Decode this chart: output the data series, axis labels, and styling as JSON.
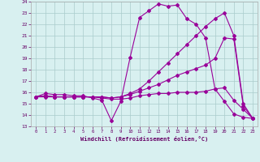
{
  "xlabel": "Windchill (Refroidissement éolien,°C)",
  "x_hours": [
    0,
    1,
    2,
    3,
    4,
    5,
    6,
    7,
    8,
    9,
    10,
    11,
    12,
    13,
    14,
    15,
    16,
    17,
    18,
    19,
    20,
    21,
    22,
    23
  ],
  "line1": [
    15.6,
    15.9,
    15.8,
    15.8,
    15.7,
    15.7,
    15.5,
    15.3,
    13.5,
    15.2,
    19.1,
    22.6,
    23.2,
    23.8,
    23.6,
    23.7,
    22.5,
    22.0,
    20.8,
    16.3,
    15.2,
    14.1,
    13.8,
    13.7
  ],
  "line2": [
    15.6,
    15.6,
    15.6,
    15.6,
    15.6,
    15.6,
    15.6,
    15.5,
    15.4,
    15.4,
    15.5,
    15.7,
    15.8,
    15.9,
    15.9,
    16.0,
    16.0,
    16.0,
    16.1,
    16.3,
    16.4,
    15.3,
    14.5,
    13.7
  ],
  "line3": [
    15.6,
    15.7,
    15.6,
    15.6,
    15.6,
    15.6,
    15.6,
    15.6,
    15.5,
    15.6,
    15.8,
    16.1,
    16.4,
    16.7,
    17.1,
    17.5,
    17.8,
    18.1,
    18.4,
    19.0,
    20.8,
    20.7,
    14.8,
    13.7
  ],
  "line4": [
    15.6,
    15.7,
    15.6,
    15.6,
    15.6,
    15.6,
    15.6,
    15.6,
    15.5,
    15.6,
    15.9,
    16.3,
    17.0,
    17.8,
    18.6,
    19.4,
    20.2,
    21.0,
    21.8,
    22.5,
    23.0,
    21.0,
    15.0,
    13.7
  ],
  "line_color": "#990099",
  "bg_color": "#d8f0f0",
  "grid_color": "#aacccc",
  "ylim": [
    13,
    24
  ],
  "xlim_min": -0.5,
  "xlim_max": 23.5,
  "yticks": [
    13,
    14,
    15,
    16,
    17,
    18,
    19,
    20,
    21,
    22,
    23,
    24
  ],
  "xticks": [
    0,
    1,
    2,
    3,
    4,
    5,
    6,
    7,
    8,
    9,
    10,
    11,
    12,
    13,
    14,
    15,
    16,
    17,
    18,
    19,
    20,
    21,
    22,
    23
  ]
}
